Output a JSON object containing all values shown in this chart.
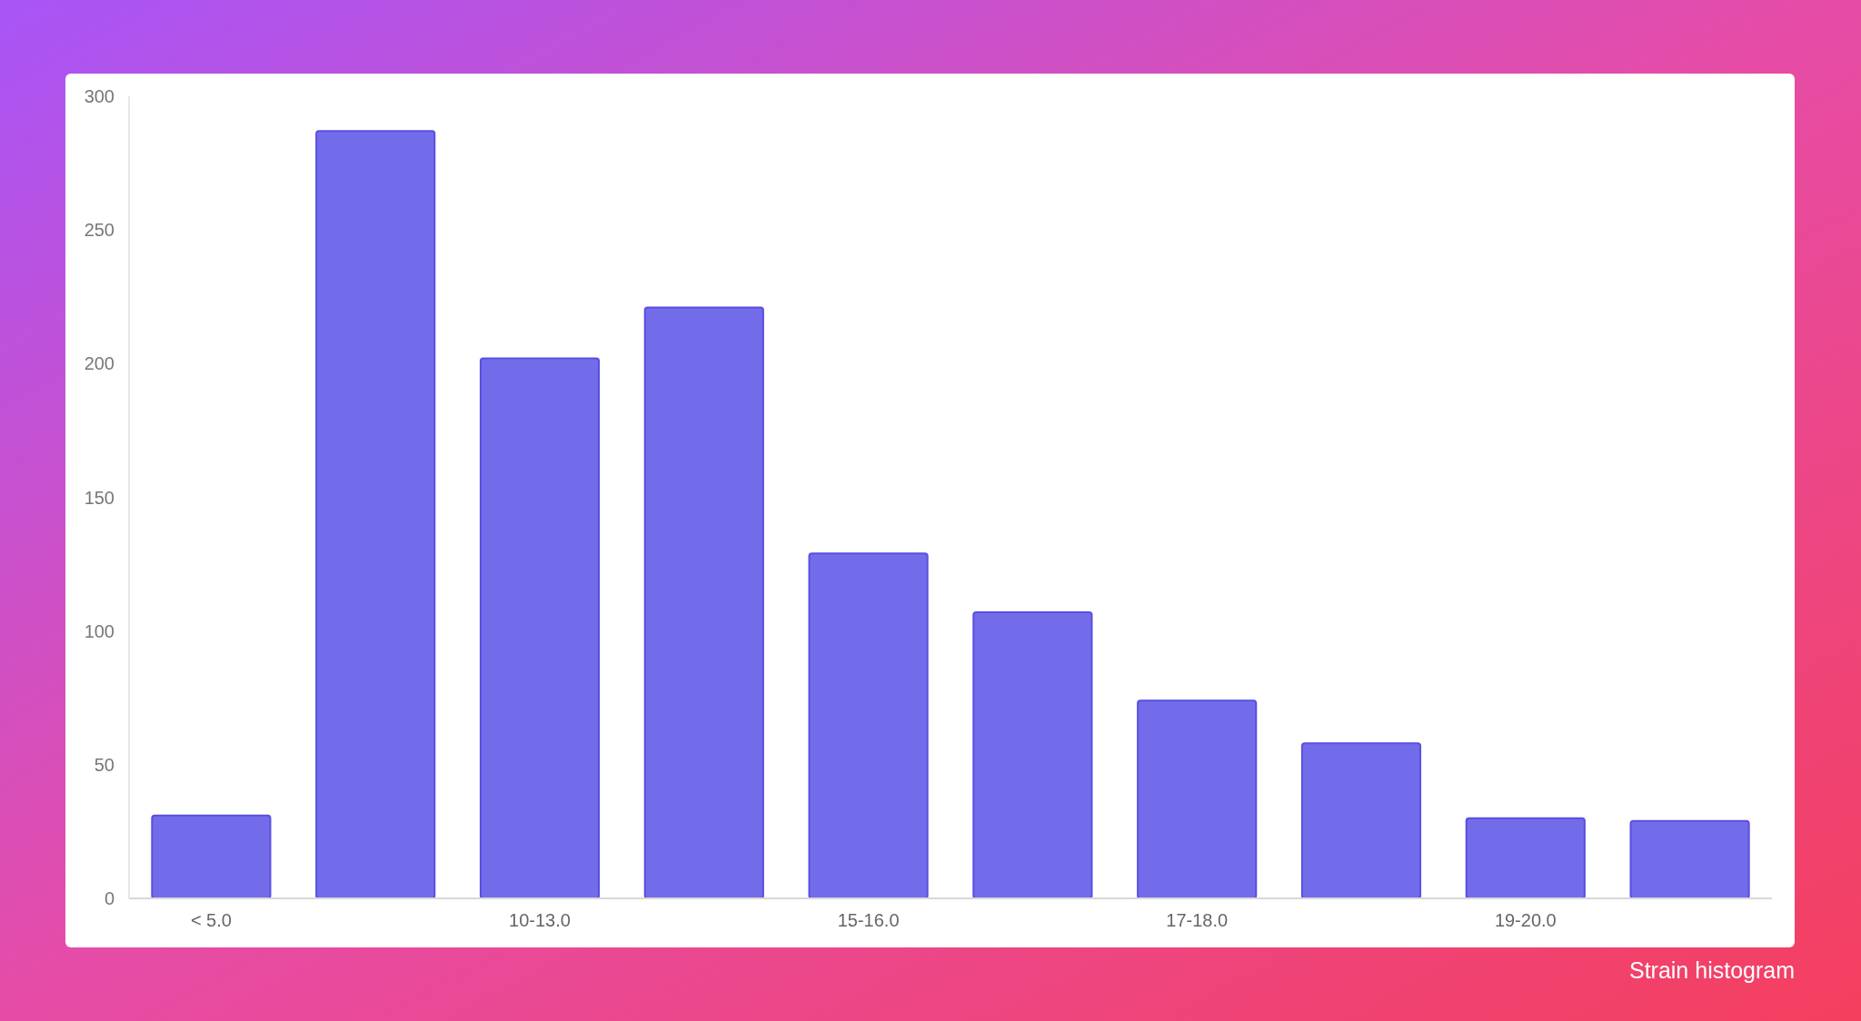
{
  "chart_data": {
    "type": "bar",
    "categories": [
      "< 5.0",
      null,
      "10-13.0",
      null,
      "15-16.0",
      null,
      "17-18.0",
      null,
      "19-20.0",
      null
    ],
    "values": [
      31,
      287,
      202,
      221,
      129,
      107,
      74,
      58,
      30,
      29
    ],
    "color": "#736cea",
    "ylim": [
      0,
      300
    ],
    "yticks": [
      0,
      50,
      100,
      150,
      200,
      250,
      300
    ],
    "grid": false,
    "annotations": [
      "Strain histogram"
    ]
  }
}
